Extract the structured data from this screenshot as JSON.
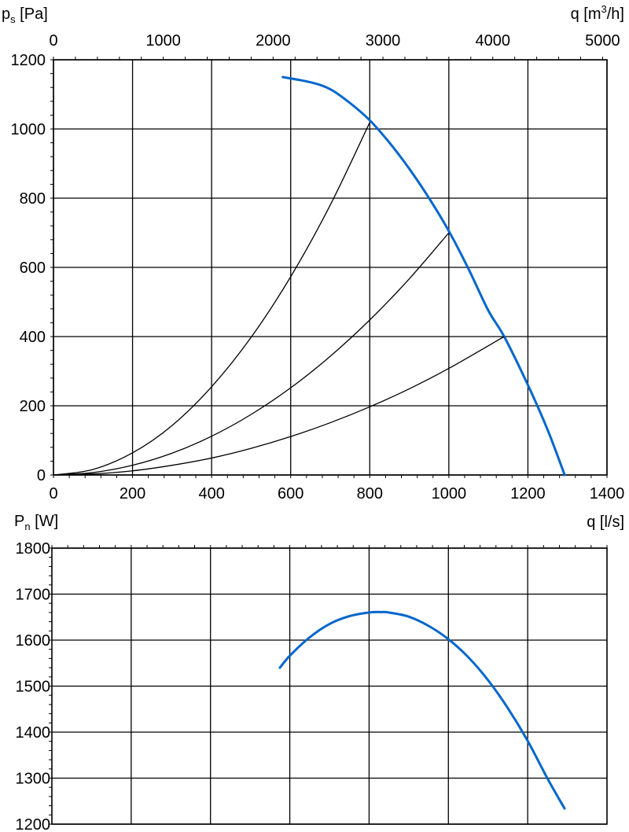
{
  "chart_data": [
    {
      "type": "line",
      "xlabel": "q [l/s]",
      "ylabel": "ps [Pa]",
      "ylabel_main": "p",
      "ylabel_sub": "s",
      "ylabel_unit": " [Pa]",
      "x2label": "q [m3/h]",
      "x2label_pre": "q [m",
      "x2label_sup": "3",
      "x2label_post": "/h]",
      "xlim": [
        0,
        1400
      ],
      "ylim": [
        0,
        1200
      ],
      "x2lim": [
        0,
        5040
      ],
      "x_ticks": [
        "0",
        "200",
        "400",
        "600",
        "800",
        "1000",
        "1200",
        "1400"
      ],
      "y_ticks": [
        "0",
        "200",
        "400",
        "600",
        "800",
        "1000",
        "1200"
      ],
      "x2_ticks": [
        "0",
        "1000",
        "2000",
        "3000",
        "4000",
        "5000"
      ],
      "grid": true,
      "series": [
        {
          "role": "fan-curve",
          "color": "#0066CC",
          "x": [
            580,
            650,
            700,
            750,
            800,
            850,
            900,
            950,
            1000,
            1050,
            1100,
            1140,
            1200,
            1250,
            1293
          ],
          "y": [
            1150,
            1135,
            1115,
            1075,
            1025,
            960,
            885,
            800,
            705,
            595,
            475,
            400,
            260,
            130,
            0
          ]
        },
        {
          "role": "system-curve",
          "color": "#000000",
          "x": [
            0,
            100,
            200,
            300,
            400,
            500,
            600,
            700,
            800
          ],
          "y": [
            0,
            16,
            64,
            143,
            255,
            398,
            573,
            780,
            1019
          ]
        },
        {
          "role": "system-curve",
          "color": "#000000",
          "x": [
            0,
            100,
            200,
            300,
            400,
            500,
            600,
            700,
            800,
            900,
            1000
          ],
          "y": [
            0,
            7,
            28,
            63,
            112,
            175,
            252,
            343,
            448,
            567,
            700
          ]
        },
        {
          "role": "system-curve",
          "color": "#000000",
          "x": [
            0,
            100,
            200,
            300,
            400,
            500,
            600,
            700,
            800,
            900,
            1000,
            1140
          ],
          "y": [
            0,
            3,
            12,
            28,
            49,
            77,
            111,
            151,
            197,
            249,
            308,
            400
          ]
        }
      ]
    },
    {
      "type": "line",
      "xlabel": "",
      "ylabel": "Pn [W]",
      "ylabel_main": "P",
      "ylabel_sub": "n",
      "ylabel_unit": " [W]",
      "xlim": [
        0,
        1400
      ],
      "ylim": [
        1200,
        1800
      ],
      "y_ticks": [
        "1200",
        "1300",
        "1400",
        "1500",
        "1600",
        "1700",
        "1800"
      ],
      "grid": true,
      "series": [
        {
          "role": "power-curve",
          "color": "#0066CC",
          "x": [
            575,
            600,
            650,
            700,
            750,
            800,
            830,
            850,
            900,
            950,
            1000,
            1050,
            1100,
            1150,
            1200,
            1250,
            1293
          ],
          "y": [
            1540,
            1566,
            1606,
            1635,
            1652,
            1660,
            1661,
            1660,
            1651,
            1631,
            1602,
            1563,
            1513,
            1452,
            1381,
            1299,
            1234
          ]
        }
      ]
    }
  ]
}
